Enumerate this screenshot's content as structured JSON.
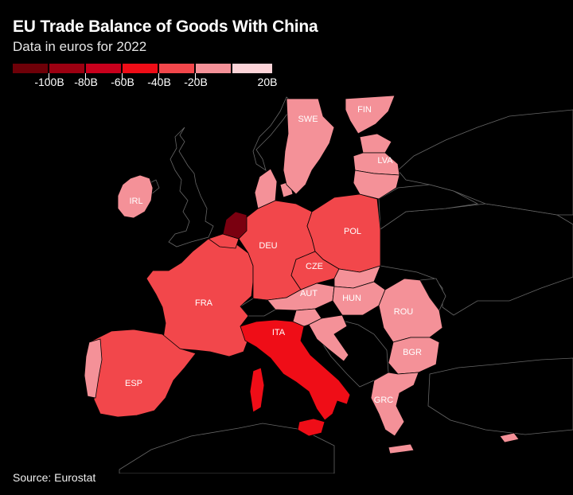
{
  "header": {
    "title": "EU Trade Balance of Goods With China",
    "subtitle": "Data in euros for 2022"
  },
  "legend": {
    "colors": [
      "#6e0008",
      "#9c0011",
      "#c8001c",
      "#ef0d17",
      "#f2474b",
      "#f49198",
      "#fdd4d8"
    ],
    "labels": [
      "-100B",
      "-80B",
      "-60B",
      "-40B",
      "-20B",
      "20B"
    ]
  },
  "map_data": {
    "countries": [
      {
        "code": "NLD",
        "label": "",
        "color": "#7a0010"
      },
      {
        "code": "IRL",
        "label": "IRL",
        "color": "#f49198"
      },
      {
        "code": "FRA",
        "label": "FRA",
        "color": "#f2474b"
      },
      {
        "code": "ESP",
        "label": "ESP",
        "color": "#f2474b"
      },
      {
        "code": "ITA",
        "label": "ITA",
        "color": "#ef0d17"
      },
      {
        "code": "DEU",
        "label": "DEU",
        "color": "#f2474b"
      },
      {
        "code": "POL",
        "label": "POL",
        "color": "#f2474b"
      },
      {
        "code": "CZE",
        "label": "CZE",
        "color": "#f2474b"
      },
      {
        "code": "AUT",
        "label": "AUT",
        "color": "#f49198"
      },
      {
        "code": "HUN",
        "label": "HUN",
        "color": "#f49198"
      },
      {
        "code": "ROU",
        "label": "ROU",
        "color": "#f49198"
      },
      {
        "code": "BGR",
        "label": "BGR",
        "color": "#f49198"
      },
      {
        "code": "GRC",
        "label": "GRC",
        "color": "#f49198"
      },
      {
        "code": "SWE",
        "label": "SWE",
        "color": "#f49198"
      },
      {
        "code": "FIN",
        "label": "FIN",
        "color": "#f49198"
      },
      {
        "code": "LVA",
        "label": "LVA",
        "color": "#f49198"
      }
    ]
  },
  "footer": {
    "source": "Source: Eurostat"
  }
}
